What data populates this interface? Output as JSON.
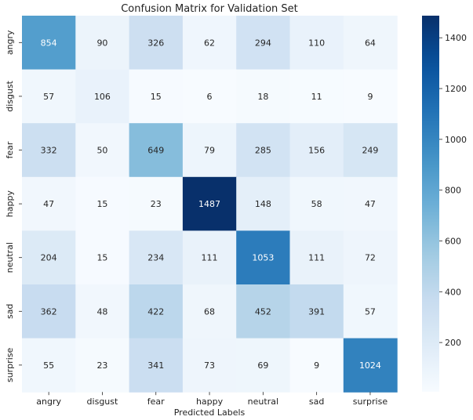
{
  "chart_data": {
    "type": "heatmap",
    "title": "Confusion Matrix for Validation Set",
    "xlabel": "Predicted Labels",
    "ylabel": "",
    "x_categories": [
      "angry",
      "disgust",
      "fear",
      "happy",
      "neutral",
      "sad",
      "surprise"
    ],
    "y_categories": [
      "angry",
      "disgust",
      "fear",
      "happy",
      "neutral",
      "sad",
      "surprise"
    ],
    "values": [
      [
        854,
        90,
        326,
        62,
        294,
        110,
        64
      ],
      [
        57,
        106,
        15,
        6,
        18,
        11,
        9
      ],
      [
        332,
        50,
        649,
        79,
        285,
        156,
        249
      ],
      [
        47,
        15,
        23,
        1487,
        148,
        58,
        47
      ],
      [
        204,
        15,
        234,
        111,
        1053,
        111,
        72
      ],
      [
        362,
        48,
        422,
        68,
        452,
        391,
        57
      ],
      [
        55,
        23,
        341,
        73,
        69,
        9,
        1024
      ]
    ],
    "colormap": "Blues",
    "color_range": [
      6,
      1487
    ],
    "colorbar_ticks": [
      200,
      400,
      600,
      800,
      1000,
      1200,
      1400
    ],
    "annotations": true,
    "grid": false,
    "colors": {
      "low": "#f7fbff",
      "high": "#08306b",
      "text_dark": "#262626",
      "text_light": "#ffffff"
    }
  }
}
